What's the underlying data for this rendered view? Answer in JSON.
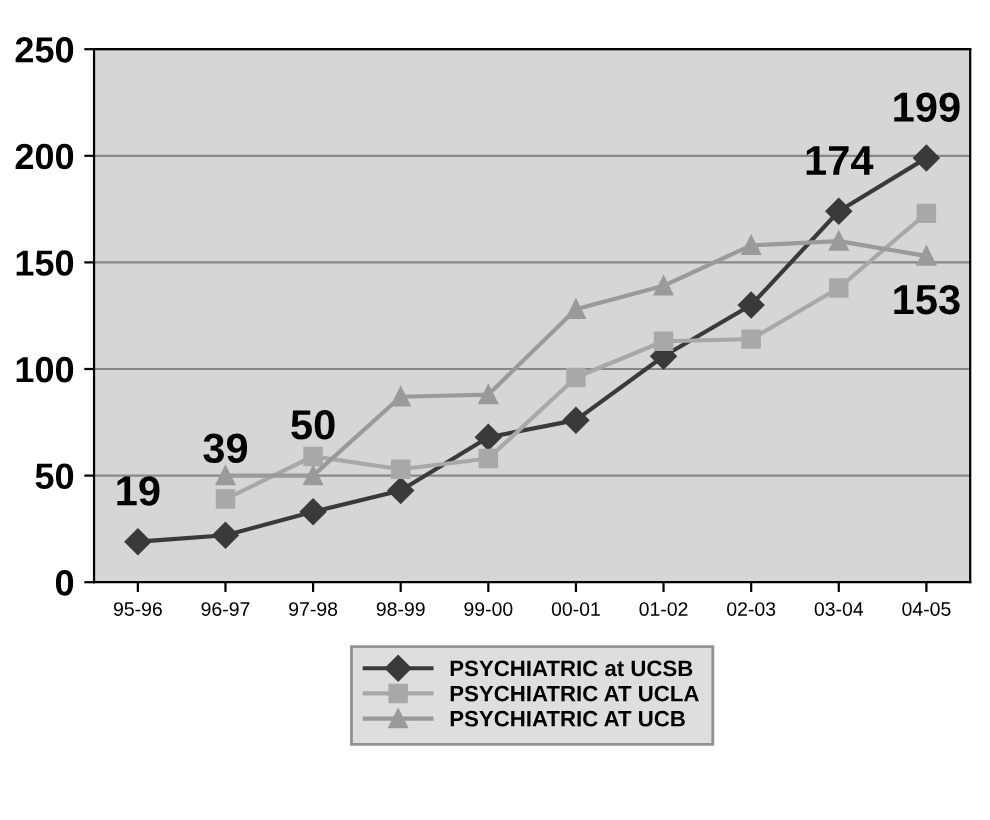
{
  "chart_data": {
    "type": "line",
    "categories": [
      "95-96",
      "96-97",
      "97-98",
      "98-99",
      "99-00",
      "00-01",
      "01-02",
      "02-03",
      "03-04",
      "04-05"
    ],
    "series": [
      {
        "name": "PSYCHIATRIC at UCSB",
        "color": "#3a3a3a",
        "marker": "diamond",
        "values": [
          19,
          22,
          33,
          43,
          68,
          76,
          106,
          130,
          174,
          199
        ],
        "value_labels": [
          "19",
          null,
          null,
          null,
          null,
          null,
          null,
          null,
          "174",
          "199"
        ]
      },
      {
        "name": "PSYCHIATRIC AT UCLA",
        "color": "#a8a8a8",
        "marker": "square",
        "values": [
          null,
          39,
          59,
          53,
          58,
          96,
          113,
          114,
          138,
          173
        ],
        "value_labels": [
          null,
          "39",
          null,
          null,
          null,
          null,
          null,
          null,
          null,
          null
        ]
      },
      {
        "name": "PSYCHIATRIC AT UCB",
        "color": "#9a9a9a",
        "marker": "triangle",
        "values": [
          null,
          50,
          50,
          87,
          88,
          128,
          139,
          158,
          160,
          153
        ],
        "value_labels": [
          null,
          null,
          "50",
          null,
          null,
          null,
          null,
          null,
          null,
          "153"
        ]
      }
    ],
    "ylim": [
      0,
      250
    ],
    "yticks": [
      0,
      50,
      100,
      150,
      200,
      250
    ],
    "grid": "y",
    "legend": "bottom"
  }
}
